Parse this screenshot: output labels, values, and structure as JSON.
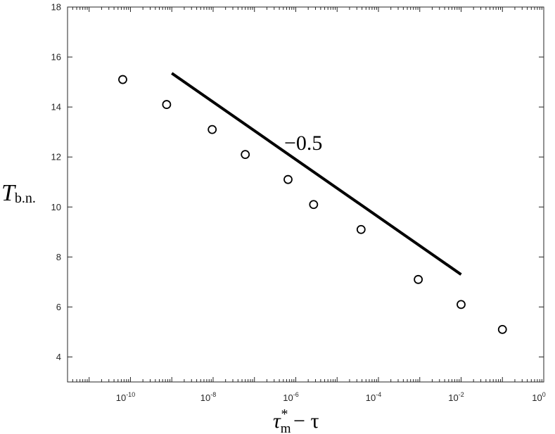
{
  "chart_data": {
    "type": "scatter",
    "xscale": "log",
    "xlim": [
      3e-12,
      1
    ],
    "ylim": [
      3,
      18
    ],
    "xticks": [
      {
        "value": 1e-10,
        "base": "10",
        "exp": "-10"
      },
      {
        "value": 1e-08,
        "base": "10",
        "exp": "-8"
      },
      {
        "value": 1e-06,
        "base": "10",
        "exp": "-6"
      },
      {
        "value": 0.0001,
        "base": "10",
        "exp": "-4"
      },
      {
        "value": 0.01,
        "base": "10",
        "exp": "-2"
      },
      {
        "value": 1,
        "base": "10",
        "exp": "0"
      }
    ],
    "yticks": [
      4,
      6,
      8,
      10,
      12,
      14,
      16,
      18
    ],
    "xlabel": {
      "tau": "τ",
      "sub": "m",
      "sup": "*",
      "rest": " − τ"
    },
    "ylabel": {
      "main": "T",
      "sub": "b.n."
    },
    "grid": false,
    "marker": "open-circle",
    "points": [
      {
        "x": 6.5e-11,
        "y": 15.1
      },
      {
        "x": 7.5e-10,
        "y": 14.1
      },
      {
        "x": 9.5e-09,
        "y": 13.1
      },
      {
        "x": 6e-08,
        "y": 12.1
      },
      {
        "x": 6.5e-07,
        "y": 11.1
      },
      {
        "x": 2.7e-06,
        "y": 10.1
      },
      {
        "x": 3.8e-05,
        "y": 9.1
      },
      {
        "x": 0.00092,
        "y": 7.1
      },
      {
        "x": 0.01,
        "y": 6.1
      },
      {
        "x": 0.1,
        "y": 5.1
      }
    ],
    "reference_line": {
      "slope_label": "−0.5",
      "from": {
        "x": 1e-09,
        "y": 15.35
      },
      "to": {
        "x": 0.01,
        "y": 7.3
      }
    }
  }
}
